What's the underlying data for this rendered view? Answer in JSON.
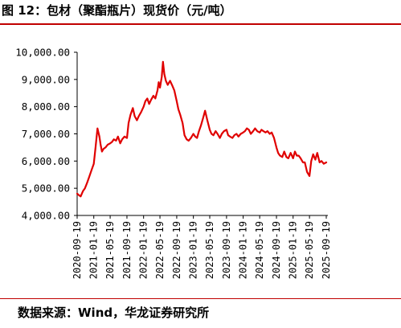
{
  "header": {
    "title": "图 12：包材（聚酯瓶片）现货价（元/吨）"
  },
  "footer": {
    "source": "数据来源：Wind，华龙证券研究所"
  },
  "colors": {
    "line": "#e00000",
    "rule": "#c00000",
    "axis": "#000000"
  },
  "chart_data": {
    "type": "line",
    "title": "图 12：包材（聚酯瓶片）现货价（元/吨）",
    "xlabel": "",
    "ylabel": "",
    "ylim": [
      4000,
      10000
    ],
    "yticks": [
      "4,000.00",
      "5,000.00",
      "6,000.00",
      "7,000.00",
      "8,000.00",
      "9,000.00",
      "10,000.00"
    ],
    "xticks": [
      "2020-09-19",
      "2021-01-19",
      "2021-05-19",
      "2021-09-19",
      "2022-01-19",
      "2022-05-19",
      "2022-09-19",
      "2023-01-19",
      "2023-05-19",
      "2023-09-19",
      "2024-01-19",
      "2024-05-19",
      "2024-09-19",
      "2025-01-19",
      "2025-05-19",
      "2025-09-19"
    ],
    "grid": false,
    "legend": "none",
    "series": [
      {
        "x": [
          "2020-09-19",
          "2020-10-01",
          "2020-10-15",
          "2020-11-01",
          "2020-11-15",
          "2020-12-01",
          "2020-12-15",
          "2021-01-01",
          "2021-01-19",
          "2021-02-01",
          "2021-02-15",
          "2021-03-01",
          "2021-03-10",
          "2021-03-20",
          "2021-04-01",
          "2021-04-15",
          "2021-05-01",
          "2021-05-19",
          "2021-06-01",
          "2021-06-15",
          "2021-07-01",
          "2021-07-15",
          "2021-08-01",
          "2021-08-15",
          "2021-09-01",
          "2021-09-19",
          "2021-10-01",
          "2021-10-15",
          "2021-11-01",
          "2021-11-15",
          "2021-12-01",
          "2021-12-15",
          "2022-01-01",
          "2022-01-19",
          "2022-02-01",
          "2022-02-15",
          "2022-03-01",
          "2022-03-15",
          "2022-04-01",
          "2022-04-15",
          "2022-05-01",
          "2022-05-10",
          "2022-05-19",
          "2022-06-01",
          "2022-06-10",
          "2022-06-20",
          "2022-07-01",
          "2022-07-15",
          "2022-08-01",
          "2022-08-15",
          "2022-09-01",
          "2022-09-19",
          "2022-10-01",
          "2022-10-15",
          "2022-11-01",
          "2022-11-15",
          "2022-12-01",
          "2022-12-15",
          "2023-01-01",
          "2023-01-19",
          "2023-02-01",
          "2023-02-15",
          "2023-03-01",
          "2023-03-15",
          "2023-04-01",
          "2023-04-15",
          "2023-05-01",
          "2023-05-19",
          "2023-06-01",
          "2023-06-15",
          "2023-07-01",
          "2023-07-15",
          "2023-08-01",
          "2023-08-15",
          "2023-09-01",
          "2023-09-19",
          "2023-10-01",
          "2023-10-15",
          "2023-11-01",
          "2023-11-15",
          "2023-12-01",
          "2023-12-15",
          "2024-01-01",
          "2024-01-19",
          "2024-02-01",
          "2024-02-15",
          "2024-03-01",
          "2024-03-15",
          "2024-04-01",
          "2024-04-15",
          "2024-05-01",
          "2024-05-19",
          "2024-06-01",
          "2024-06-15",
          "2024-07-01",
          "2024-07-15",
          "2024-08-01",
          "2024-08-15",
          "2024-09-01",
          "2024-09-19",
          "2024-10-01",
          "2024-10-15",
          "2024-11-01",
          "2024-11-15",
          "2024-12-01",
          "2024-12-15",
          "2025-01-01",
          "2025-01-19",
          "2025-02-01",
          "2025-02-15",
          "2025-03-01",
          "2025-03-15",
          "2025-04-01",
          "2025-04-15",
          "2025-05-01",
          "2025-05-19",
          "2025-06-01",
          "2025-06-15",
          "2025-07-01",
          "2025-07-15",
          "2025-08-01",
          "2025-08-15",
          "2025-09-01",
          "2025-09-19"
        ],
        "values": [
          4800,
          4750,
          4700,
          4900,
          5000,
          5200,
          5400,
          5650,
          5900,
          6500,
          7200,
          6900,
          6600,
          6350,
          6450,
          6500,
          6600,
          6650,
          6700,
          6800,
          6750,
          6900,
          6650,
          6800,
          6900,
          6850,
          7400,
          7700,
          7950,
          7650,
          7500,
          7650,
          7800,
          8000,
          8200,
          8300,
          8100,
          8250,
          8400,
          8300,
          8600,
          8900,
          8700,
          9100,
          9650,
          9200,
          8950,
          8800,
          8950,
          8800,
          8600,
          8200,
          7900,
          7700,
          7400,
          6950,
          6800,
          6750,
          6850,
          7000,
          6900,
          6850,
          7100,
          7300,
          7600,
          7850,
          7500,
          7150,
          7000,
          6950,
          7100,
          7000,
          6850,
          7000,
          7100,
          7150,
          6950,
          6900,
          6850,
          6950,
          7000,
          6900,
          7000,
          7050,
          7100,
          7200,
          7150,
          7000,
          7100,
          7200,
          7100,
          7050,
          7150,
          7100,
          7050,
          7100,
          7000,
          7050,
          6850,
          6500,
          6300,
          6200,
          6150,
          6350,
          6150,
          6100,
          6300,
          6100,
          6350,
          6200,
          6200,
          6100,
          5950,
          5950,
          5600,
          5450,
          6000,
          6250,
          6050,
          6300,
          5950,
          6000,
          5900,
          5950
        ]
      }
    ]
  }
}
